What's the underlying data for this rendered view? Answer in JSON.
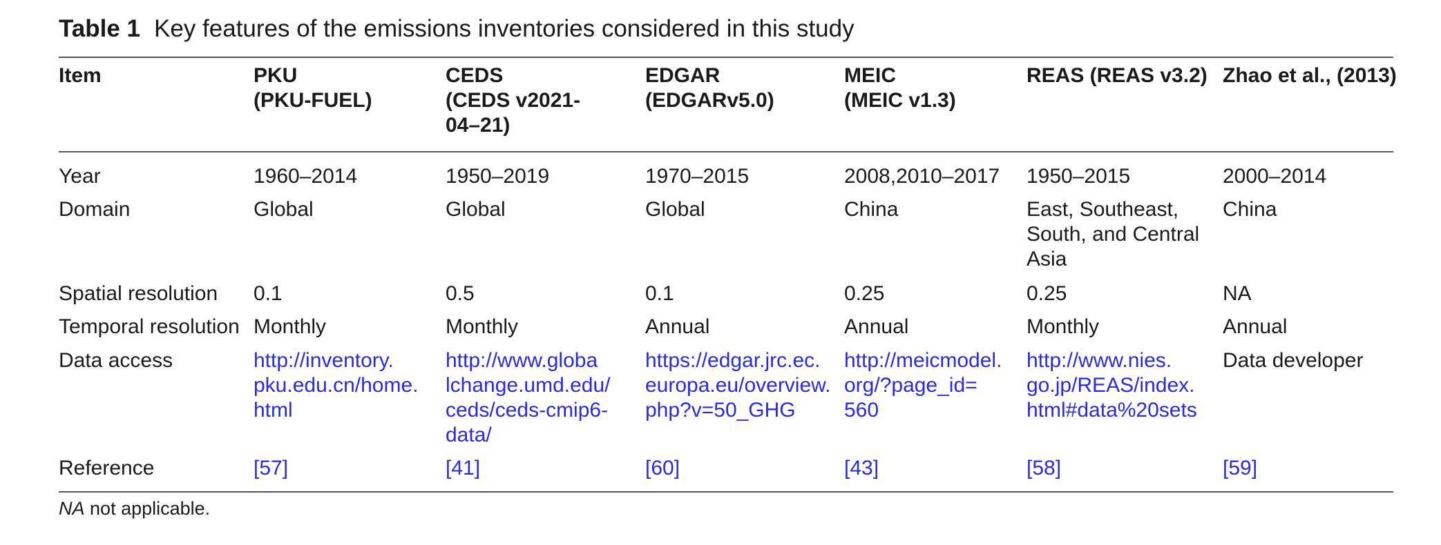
{
  "caption": {
    "label": "Table 1",
    "text": "Key features of the emissions inventories considered in this study"
  },
  "header": {
    "item": "Item",
    "pku": [
      "PKU",
      "(PKU-FUEL)"
    ],
    "ceds": [
      "CEDS",
      "(CEDS v2021-",
      "04–21)"
    ],
    "edgar": [
      "EDGAR",
      "(EDGARv5.0)"
    ],
    "meic": [
      "MEIC",
      "(MEIC v1.3)"
    ],
    "reas": [
      "REAS (REAS v3.2)"
    ],
    "zhao": [
      "Zhao et al., (2013)"
    ]
  },
  "rows": {
    "year": {
      "label": "Year",
      "pku": "1960–2014",
      "ceds": "1950–2019",
      "edgar": "1970–2015",
      "meic": "2008,2010–2017",
      "reas": "1950–2015",
      "zhao": "2000–2014"
    },
    "domain": {
      "label": "Domain",
      "pku": "Global",
      "ceds": "Global",
      "edgar": "Global",
      "meic": "China",
      "reas": [
        "East, Southeast,",
        "South, and Central",
        "Asia"
      ],
      "zhao": "China"
    },
    "spatial": {
      "label": "Spatial resolution",
      "pku": "0.1",
      "ceds": "0.5",
      "edgar": "0.1",
      "meic": "0.25",
      "reas": "0.25",
      "zhao": "NA"
    },
    "temporal": {
      "label": "Temporal resolution",
      "pku": "Monthly",
      "ceds": "Monthly",
      "edgar": "Annual",
      "meic": "Annual",
      "reas": "Monthly",
      "zhao": "Annual"
    },
    "access": {
      "label": "Data access",
      "pku": [
        "http://inventory.",
        "pku.edu.cn/home.",
        "html"
      ],
      "ceds": [
        "http://www.globa",
        "lchange.umd.edu/",
        "ceds/ceds-cmip6-",
        "data/"
      ],
      "edgar": [
        "https://edgar.jrc.ec.",
        "europa.eu/overview.",
        "php?v=50_GHG"
      ],
      "meic": [
        "http://meicmodel.",
        "org/?page_id=",
        "560"
      ],
      "reas": [
        "http://www.nies.",
        "go.jp/REAS/index.",
        "html#data%20sets"
      ],
      "zhao": "Data developer"
    },
    "reference": {
      "label": "Reference",
      "pku": "[57]",
      "ceds": "[41]",
      "edgar": "[60]",
      "meic": "[43]",
      "reas": "[58]",
      "zhao": "[59]"
    }
  },
  "footnote": {
    "abbr": "NA",
    "text": "not applicable."
  },
  "colors": {
    "link": "#2a2ae0",
    "text": "#1a1a1a",
    "rule": "#555555"
  }
}
